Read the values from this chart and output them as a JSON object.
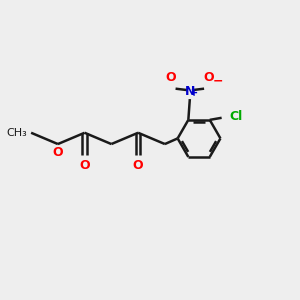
{
  "background_color": "#eeeeee",
  "bond_color": "#1a1a1a",
  "oxygen_color": "#ff0000",
  "nitrogen_color": "#0000cc",
  "chlorine_color": "#00aa00",
  "line_width": 1.8,
  "double_sep": 0.08,
  "fig_size": [
    3.0,
    3.0
  ],
  "dpi": 100,
  "xlim": [
    0,
    10
  ],
  "ylim": [
    0,
    10
  ]
}
